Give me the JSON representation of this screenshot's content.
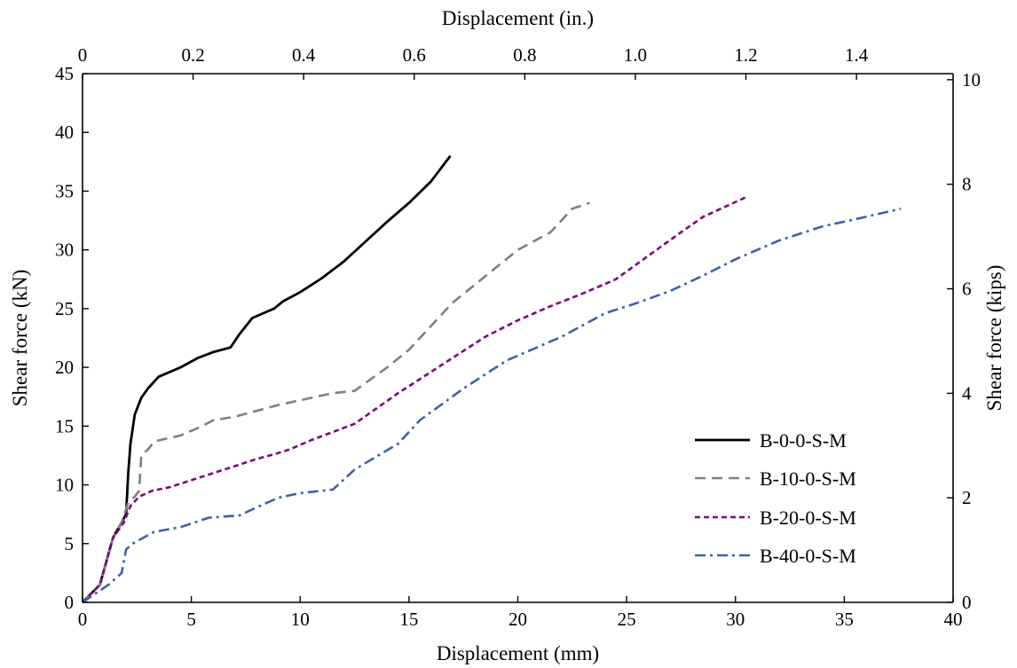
{
  "chart_data": {
    "type": "line",
    "xlabel": "Displacement (mm)",
    "x2label": "Displacement (in.)",
    "ylabel": "Shear force (kN)",
    "y2label": "Shear force (kips)",
    "xlim": [
      0,
      40
    ],
    "ylim": [
      0,
      45
    ],
    "x2lim": [
      0,
      1.5748
    ],
    "y2lim": [
      0,
      10.1164
    ],
    "x_ticks": [
      0,
      5,
      10,
      15,
      20,
      25,
      30,
      35,
      40
    ],
    "y_ticks": [
      0,
      5,
      10,
      15,
      20,
      25,
      30,
      35,
      40,
      45
    ],
    "x2_ticks": [
      "0",
      "0.2",
      "0.4",
      "0.6",
      "0.8",
      "1.0",
      "1.2",
      "1.4"
    ],
    "x2_tick_values": [
      0,
      0.2,
      0.4,
      0.6,
      0.8,
      1.0,
      1.2,
      1.4
    ],
    "y2_ticks": [
      "0",
      "2",
      "4",
      "6",
      "8",
      "10"
    ],
    "y2_tick_values": [
      0,
      2,
      4,
      6,
      8,
      10
    ],
    "grid": false,
    "legend_position": "lower-right",
    "series": [
      {
        "name": "B-0-0-S-M",
        "color": "#000000",
        "dash": "solid",
        "x": [
          0,
          0.8,
          1.4,
          1.8,
          2.0,
          2.1,
          2.2,
          2.4,
          2.7,
          3.0,
          3.5,
          4.5,
          5.3,
          6.0,
          6.8,
          7.2,
          7.8,
          8.8,
          9.2,
          10.0,
          11.0,
          12.0,
          13.0,
          14.0,
          15.0,
          16.0,
          16.9
        ],
        "y": [
          0,
          1.5,
          5.5,
          6.8,
          7.5,
          11.0,
          13.5,
          16.0,
          17.4,
          18.2,
          19.2,
          20.0,
          20.8,
          21.3,
          21.7,
          22.8,
          24.2,
          25.0,
          25.6,
          26.4,
          27.6,
          29.0,
          30.7,
          32.4,
          34.0,
          35.8,
          38.0
        ]
      },
      {
        "name": "B-10-0-S-M",
        "color": "#808080",
        "dash": "long-dash",
        "x": [
          0,
          0.8,
          1.4,
          1.8,
          2.1,
          2.4,
          2.6,
          2.7,
          3.0,
          3.3,
          4.5,
          5.5,
          6.0,
          7.0,
          8.0,
          9.0,
          10.0,
          11.5,
          12.5,
          14.0,
          15.0,
          16.0,
          17.0,
          18.0,
          19.0,
          20.0,
          21.5,
          22.0,
          22.5,
          23.3
        ],
        "y": [
          0,
          1.5,
          5.5,
          6.8,
          8.5,
          9.0,
          9.5,
          12.5,
          13.0,
          13.7,
          14.2,
          15.0,
          15.5,
          15.8,
          16.3,
          16.8,
          17.2,
          17.8,
          18.0,
          20.0,
          21.5,
          23.5,
          25.5,
          27.0,
          28.5,
          30.0,
          31.5,
          32.5,
          33.5,
          34.0
        ]
      },
      {
        "name": "B-20-0-S-M",
        "color": "#800080",
        "dash": "short-dash",
        "x": [
          0,
          0.8,
          1.4,
          1.9,
          2.2,
          2.6,
          3.2,
          4.0,
          5.0,
          6.0,
          7.0,
          8.0,
          8.8,
          9.5,
          10.5,
          11.5,
          12.5,
          13.5,
          14.5,
          15.5,
          17.0,
          18.5,
          20.0,
          21.5,
          23.0,
          24.5,
          26.0,
          27.5,
          28.5,
          30.5
        ],
        "y": [
          0,
          1.5,
          5.5,
          6.8,
          8.2,
          9.0,
          9.5,
          9.8,
          10.4,
          11.0,
          11.6,
          12.2,
          12.6,
          13.0,
          13.8,
          14.5,
          15.2,
          16.5,
          17.8,
          19.0,
          20.8,
          22.6,
          24.0,
          25.2,
          26.3,
          27.5,
          29.5,
          31.5,
          32.8,
          34.5
        ]
      },
      {
        "name": "B-40-0-S-M",
        "color": "#4060A8",
        "dash": "dash-dot",
        "x": [
          0,
          1.2,
          1.8,
          2.0,
          2.3,
          3.3,
          4.5,
          5.8,
          7.2,
          8.5,
          9.0,
          10.0,
          11.5,
          12.5,
          14.5,
          15.5,
          17.5,
          19.5,
          22.0,
          24.0,
          25.5,
          27.0,
          28.5,
          30.0,
          32.0,
          34.0,
          35.5,
          37.6
        ],
        "y": [
          0,
          1.5,
          2.5,
          4.5,
          5.0,
          6.0,
          6.4,
          7.2,
          7.4,
          8.5,
          8.9,
          9.3,
          9.6,
          11.3,
          13.5,
          15.5,
          18.2,
          20.6,
          22.6,
          24.6,
          25.5,
          26.5,
          27.8,
          29.2,
          30.8,
          32.0,
          32.6,
          33.5
        ]
      }
    ]
  }
}
